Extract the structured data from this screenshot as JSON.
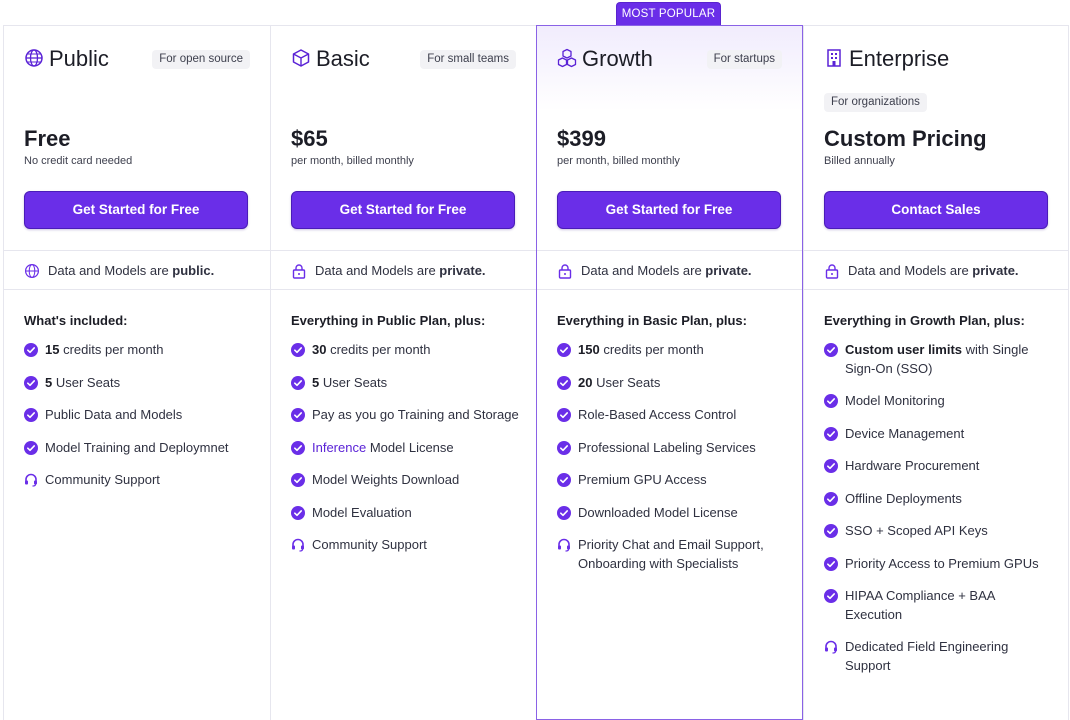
{
  "badge": "MOST POPULAR",
  "colors": {
    "accent": "#6a2ee8",
    "highlight_border": "#8a62e6"
  },
  "plans": [
    {
      "icon": "globe-icon",
      "name": "Public",
      "tag": "For open source",
      "price": "Free",
      "price_sub": "No credit card needed",
      "cta": "Get Started for Free",
      "privacy_prefix": "Data and Models are ",
      "privacy_value": "public.",
      "features_heading": "What's included:",
      "features": [
        {
          "icon": "check-circle-icon",
          "bold": "15",
          "text": " credits per month"
        },
        {
          "icon": "check-circle-icon",
          "bold": "5",
          "text": " User Seats"
        },
        {
          "icon": "check-circle-icon",
          "bold": "",
          "text": "Public Data and Models"
        },
        {
          "icon": "check-circle-icon",
          "bold": "",
          "text": "Model Training and Deploymnet"
        },
        {
          "icon": "headset-icon",
          "bold": "",
          "text": "Community Support"
        }
      ]
    },
    {
      "icon": "cube-icon",
      "name": "Basic",
      "tag": "For small teams",
      "price": "$65",
      "price_sub": "per month, billed monthly",
      "cta": "Get Started for Free",
      "privacy_prefix": "Data and Models are ",
      "privacy_value": "private.",
      "features_heading": "Everything in Public Plan, plus:",
      "features": [
        {
          "icon": "check-circle-icon",
          "bold": "30",
          "text": " credits per month"
        },
        {
          "icon": "check-circle-icon",
          "bold": "5",
          "text": " User Seats"
        },
        {
          "icon": "check-circle-icon",
          "bold": "",
          "text": "Pay as you go Training and Storage"
        },
        {
          "icon": "check-circle-icon",
          "link": "Inference",
          "text": " Model License"
        },
        {
          "icon": "check-circle-icon",
          "bold": "",
          "text": "Model Weights Download"
        },
        {
          "icon": "check-circle-icon",
          "bold": "",
          "text": "Model Evaluation"
        },
        {
          "icon": "headset-icon",
          "bold": "",
          "text": "Community Support"
        }
      ]
    },
    {
      "icon": "cubes-icon",
      "name": "Growth",
      "tag": "For startups",
      "price": "$399",
      "price_sub": "per month, billed monthly",
      "cta": "Get Started for Free",
      "privacy_prefix": "Data and Models are ",
      "privacy_value": "private.",
      "features_heading": "Everything in Basic Plan, plus:",
      "features": [
        {
          "icon": "check-circle-icon",
          "bold": "150",
          "text": " credits per month"
        },
        {
          "icon": "check-circle-icon",
          "bold": "20",
          "text": " User Seats"
        },
        {
          "icon": "check-circle-icon",
          "bold": "",
          "text": "Role-Based Access Control"
        },
        {
          "icon": "check-circle-icon",
          "bold": "",
          "text": "Professional Labeling Services"
        },
        {
          "icon": "check-circle-icon",
          "bold": "",
          "text": "Premium GPU Access"
        },
        {
          "icon": "check-circle-icon",
          "bold": "",
          "text": "Downloaded Model License"
        },
        {
          "icon": "headset-icon",
          "bold": "",
          "text": "Priority Chat and Email Support, Onboarding with Specialists"
        }
      ]
    },
    {
      "icon": "building-icon",
      "name": "Enterprise",
      "tag": "For organizations",
      "price": "Custom Pricing",
      "price_sub": "Billed annually",
      "cta": "Contact Sales",
      "privacy_prefix": "Data and Models are ",
      "privacy_value": "private.",
      "features_heading": "Everything in Growth Plan, plus:",
      "features": [
        {
          "icon": "check-circle-icon",
          "bold": "Custom user limits",
          "text": " with Single Sign-On (SSO)"
        },
        {
          "icon": "check-circle-icon",
          "bold": "",
          "text": "Model Monitoring"
        },
        {
          "icon": "check-circle-icon",
          "bold": "",
          "text": "Device Management"
        },
        {
          "icon": "check-circle-icon",
          "bold": "",
          "text": "Hardware Procurement"
        },
        {
          "icon": "check-circle-icon",
          "bold": "",
          "text": "Offline Deployments"
        },
        {
          "icon": "check-circle-icon",
          "bold": "",
          "text": "SSO + Scoped API Keys"
        },
        {
          "icon": "check-circle-icon",
          "bold": "",
          "text": "Priority Access to Premium GPUs"
        },
        {
          "icon": "check-circle-icon",
          "bold": "",
          "text": "HIPAA Compliance + BAA Execution"
        },
        {
          "icon": "headset-icon",
          "bold": "",
          "text": "Dedicated Field Engineering Support"
        }
      ]
    }
  ]
}
